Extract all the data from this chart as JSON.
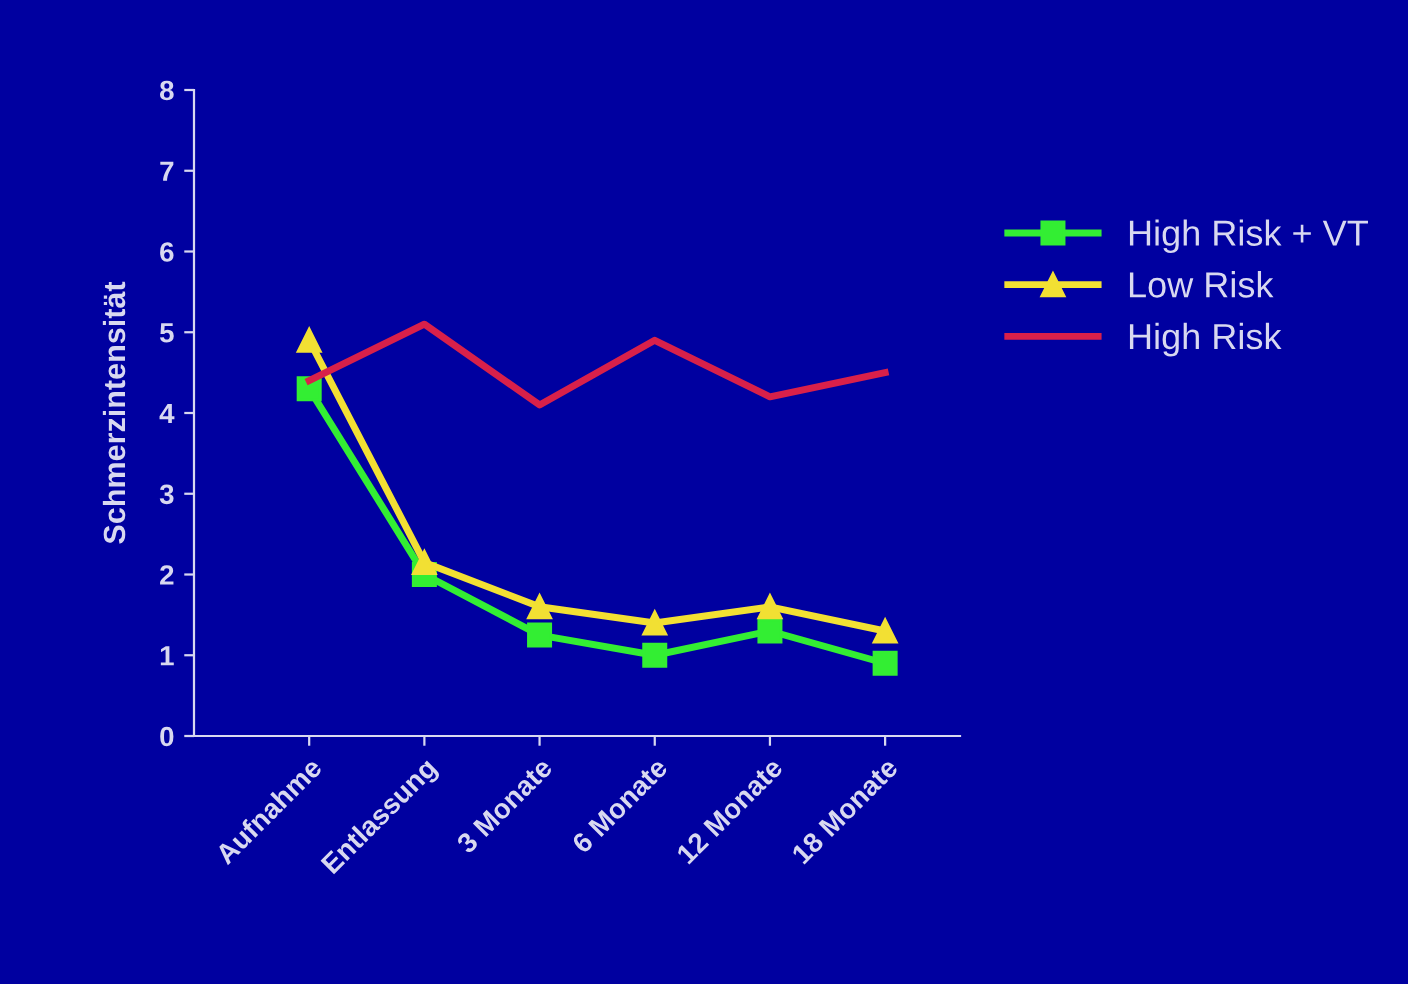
{
  "chart_data": {
    "type": "line",
    "ylabel": "Schmerzintensität",
    "categories": [
      "Aufnahme",
      "Entlassung",
      "3 Monate",
      "6 Monate",
      "12 Monate",
      "18 Monate"
    ],
    "series": [
      {
        "name": "High Risk + VT",
        "color": "#33ee33",
        "marker": "square",
        "values": [
          4.3,
          2.0,
          1.25,
          1.0,
          1.3,
          0.9
        ]
      },
      {
        "name": "Low Risk",
        "color": "#f2e033",
        "marker": "triangle",
        "values": [
          4.9,
          2.15,
          1.6,
          1.4,
          1.6,
          1.3
        ]
      },
      {
        "name": "High Risk",
        "color": "#d8204a",
        "marker": "none",
        "values": [
          4.4,
          5.1,
          4.1,
          4.9,
          4.2,
          4.5
        ]
      }
    ],
    "ylim": [
      0,
      8
    ],
    "yticks": [
      0,
      1,
      2,
      3,
      4,
      5,
      6,
      7,
      8
    ],
    "grid": false,
    "legend": "top right"
  }
}
